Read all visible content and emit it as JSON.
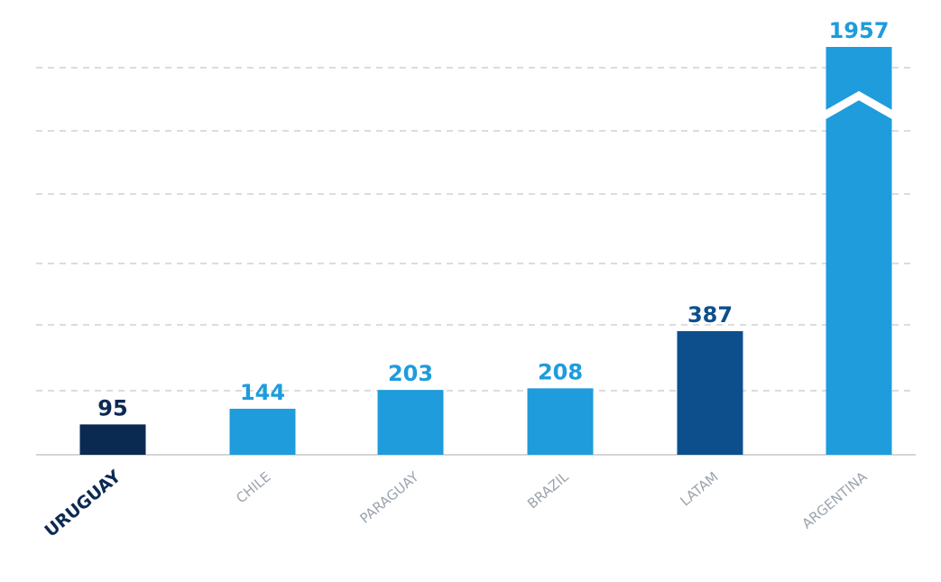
{
  "chart_data": {
    "type": "bar",
    "title": "",
    "xlabel": "",
    "ylabel": "",
    "categories": [
      "URUGUAY",
      "CHILE",
      "PARAGUAY",
      "BRAZIL",
      "LATAM",
      "ARGENTINA"
    ],
    "values": [
      95,
      144,
      203,
      208,
      387,
      1957
    ],
    "value_labels": [
      "95",
      "144",
      "203",
      "208",
      "387",
      "1957"
    ],
    "highlighted_category": "URUGUAY",
    "axis_break": {
      "category": "ARGENTINA"
    },
    "grid": true,
    "grid_style": "dashed horizontal",
    "legend": "none",
    "bar_colors": [
      "#0b2a52",
      "#1e9cdc",
      "#1e9cdc",
      "#1e9cdc",
      "#0c4f8c",
      "#1e9cdc"
    ],
    "value_label_colors": [
      "#0b2a52",
      "#1e9cdc",
      "#1e9cdc",
      "#1e9cdc",
      "#0c4f8c",
      "#1e9cdc"
    ],
    "category_label_colors": [
      "#0b2a52",
      "#9aa3ad",
      "#9aa3ad",
      "#9aa3ad",
      "#9aa3ad",
      "#9aa3ad"
    ]
  },
  "colors": {
    "grid": "#c8c8c8",
    "axis": "#c8c8c8",
    "break_gap": "#ffffff"
  }
}
